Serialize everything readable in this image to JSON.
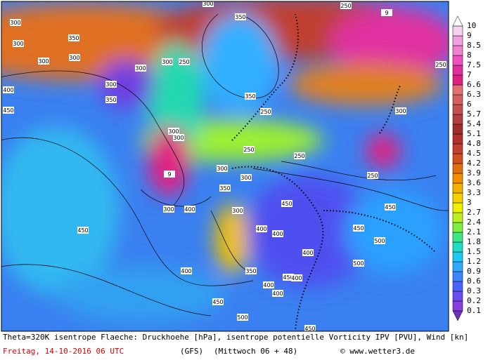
{
  "map": {
    "footer": {
      "description": "Theta=320K isentrope Flaeche: Druckhoehe [hPa], isentrope potentielle Vorticity IPV [PVU], Wind [kn]",
      "date": "Freitag, 14-10-2016  06 UTC",
      "model": "(GFS)",
      "run": "(Mittwoch 06 + 48)",
      "credit": "© www.wetter3.de"
    },
    "colorbar": {
      "levels": [
        "0.1",
        "0.2",
        "0.3",
        "0.6",
        "0.9",
        "1.2",
        "1.5",
        "1.8",
        "2.1",
        "2.4",
        "2.7",
        "3",
        "3.3",
        "3.6",
        "3.9",
        "4.2",
        "4.5",
        "4.8",
        "5.1",
        "5.4",
        "5.7",
        "6",
        "6.3",
        "6.6",
        "7",
        "7.5",
        "8",
        "8.5",
        "9",
        "10"
      ],
      "colors": [
        "#8a3ee0",
        "#6a4cf0",
        "#4a62ff",
        "#3e86ff",
        "#30aaff",
        "#1ec8f4",
        "#20dcc4",
        "#3ee684",
        "#80ee40",
        "#bcf020",
        "#eef000",
        "#f2d200",
        "#f2b000",
        "#f09000",
        "#e27010",
        "#d25020",
        "#c24030",
        "#b03030",
        "#a02c2c",
        "#b24040",
        "#c25050",
        "#d26060",
        "#e27070",
        "#e02080",
        "#e030a0",
        "#f050c0",
        "#f080d0",
        "#f0a0e0",
        "#f8d0f0"
      ]
    },
    "contour_labels": [
      "300",
      "300",
      "300",
      "350",
      "300",
      "300",
      "300",
      "250",
      "250",
      "9",
      "300",
      "350",
      "450",
      "400",
      "300",
      "350",
      "300",
      "300",
      "350",
      "250",
      "300",
      "250",
      "250",
      "300",
      "250",
      "9",
      "300",
      "400",
      "450",
      "300",
      "300",
      "350",
      "400",
      "400",
      "450",
      "400",
      "450",
      "500",
      "350",
      "400",
      "400",
      "450",
      "500",
      "400",
      "400",
      "450",
      "500",
      "450",
      "450",
      "250"
    ]
  }
}
